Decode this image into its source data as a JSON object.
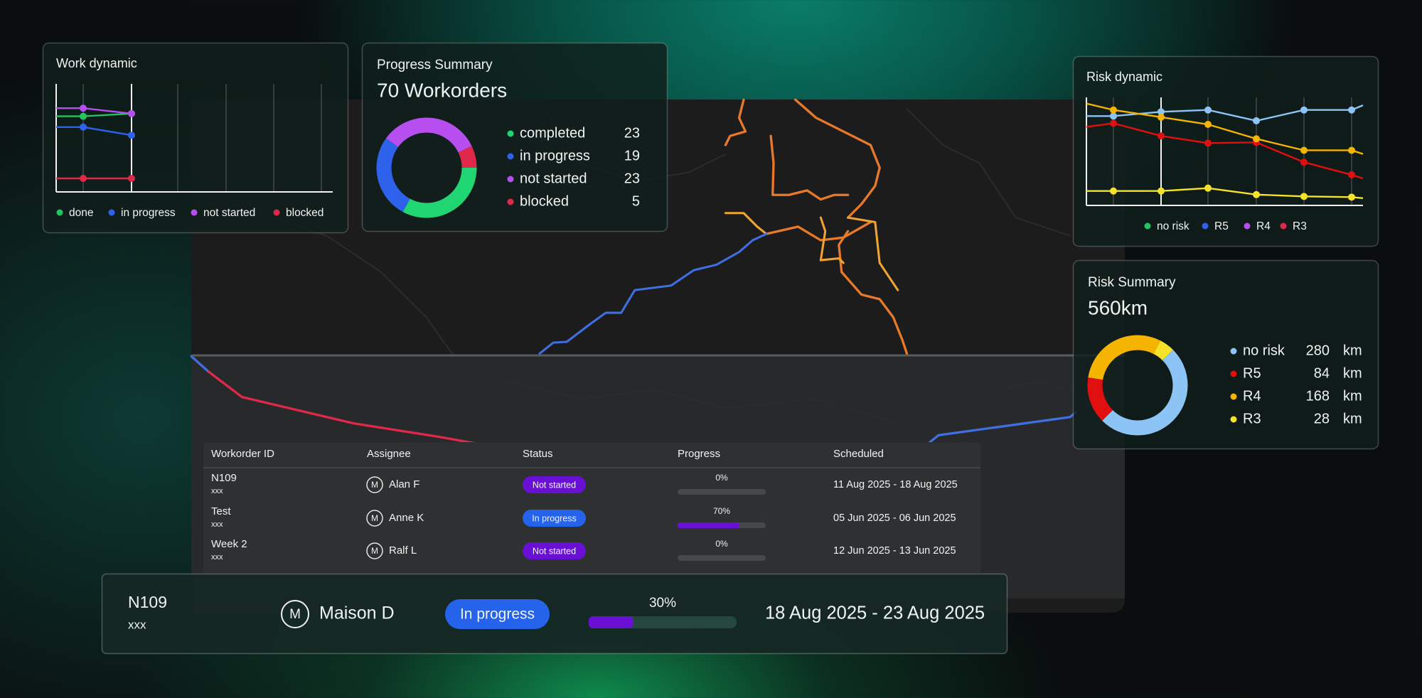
{
  "work_dynamic": {
    "title": "Work dynamic",
    "ylim": [
      0,
      40
    ],
    "series": [
      {
        "name": "done",
        "color": "#22c55e",
        "values": [
          28,
          28,
          29
        ]
      },
      {
        "name": "in progress",
        "color": "#2f62ea",
        "values": [
          24,
          24,
          21
        ]
      },
      {
        "name": "not started",
        "color": "#b64ef0",
        "values": [
          31,
          31,
          29
        ]
      },
      {
        "name": "blocked",
        "color": "#e0294a",
        "values": [
          5,
          5,
          5
        ]
      }
    ]
  },
  "progress_summary": {
    "type": "pie",
    "title": "Progress Summary",
    "headline": "70 Workorders",
    "categories": [
      "completed",
      "in progress",
      "not started",
      "blocked"
    ],
    "values": [
      23,
      19,
      23,
      5
    ],
    "colors": [
      "#1fd672",
      "#2f62ea",
      "#b64ef0",
      "#e0294a"
    ]
  },
  "risk_dynamic": {
    "title": "Risk dynamic",
    "ylim": [
      0,
      300
    ],
    "series": [
      {
        "name": "no risk",
        "color": "#8cc4f5",
        "legend_color": "#22c55e",
        "values": [
          248,
          248,
          260,
          265,
          235,
          265,
          265,
          278
        ]
      },
      {
        "name": "R5",
        "color": "#e01010",
        "legend_color": "#2f62ea",
        "values": [
          218,
          228,
          193,
          173,
          175,
          120,
          85,
          75
        ]
      },
      {
        "name": "R4",
        "color": "#f5b400",
        "legend_color": "#b64ef0",
        "values": [
          283,
          265,
          245,
          225,
          185,
          153,
          153,
          143
        ]
      },
      {
        "name": "R3",
        "color": "#f5e22a",
        "legend_color": "#e0294a",
        "values": [
          40,
          40,
          40,
          48,
          30,
          25,
          23,
          20
        ]
      }
    ]
  },
  "risk_summary": {
    "type": "pie",
    "title": "Risk Summary",
    "headline": "560km",
    "unit": "km",
    "categories": [
      "no risk",
      "R5",
      "R4",
      "R3"
    ],
    "values": [
      280,
      84,
      168,
      28
    ],
    "colors": [
      "#8cc4f5",
      "#e01010",
      "#f5b400",
      "#f5e22a"
    ]
  },
  "table": {
    "columns": [
      "Workorder ID",
      "Assignee",
      "Status",
      "Progress",
      "Scheduled"
    ],
    "rows": [
      {
        "id": "N109",
        "sub": "xxx",
        "avatar": "M",
        "assignee": "Alan F",
        "status": "Not started",
        "status_color": "#6a0fd6",
        "progress": 0,
        "progress_label": "0%",
        "scheduled": "11 Aug 2025 - 18 Aug 2025"
      },
      {
        "id": "Test",
        "sub": "xxx",
        "avatar": "M",
        "assignee": "Anne K",
        "status": "In progress",
        "status_color": "#2563eb",
        "progress": 70,
        "progress_label": "70%",
        "scheduled": "05 Jun 2025 - 06 Jun 2025"
      },
      {
        "id": "Week 2",
        "sub": "xxx",
        "avatar": "M",
        "assignee": "Ralf L",
        "status": "Not started",
        "status_color": "#6a0fd6",
        "progress": 0,
        "progress_label": "0%",
        "scheduled": "12 Jun 2025 - 13 Jun 2025"
      }
    ]
  },
  "detail": {
    "id": "N109",
    "sub": "xxx",
    "avatar": "M",
    "assignee": "Maison D",
    "status": "In progress",
    "status_color": "#2563eb",
    "progress": 30,
    "progress_label": "30%",
    "scheduled": "18 Aug 2025 - 23 Aug 2025"
  }
}
